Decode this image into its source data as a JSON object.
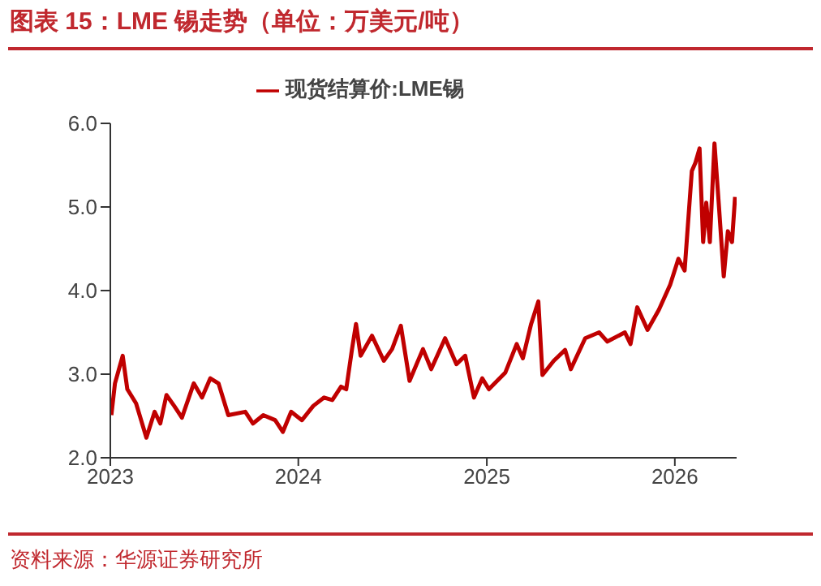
{
  "chart_data": {
    "type": "line",
    "title": "图表 15：LME 锡走势（单位：万美元/吨）",
    "annotations": [
      "资料来源：华源证券研究所"
    ],
    "x": [
      "2023-01-03",
      "2023-01-10",
      "2023-01-25",
      "2023-02-03",
      "2023-02-20",
      "2023-03-12",
      "2023-03-28",
      "2023-04-08",
      "2023-04-20",
      "2023-05-05",
      "2023-05-20",
      "2023-06-12",
      "2023-06-28",
      "2023-07-14",
      "2023-07-30",
      "2023-08-18",
      "2023-09-20",
      "2023-10-05",
      "2023-10-25",
      "2023-11-17",
      "2023-12-02",
      "2023-12-18",
      "2024-01-08",
      "2024-01-30",
      "2024-02-20",
      "2024-03-07",
      "2024-03-24",
      "2024-04-03",
      "2024-04-14",
      "2024-04-22",
      "2024-05-01",
      "2024-05-23",
      "2024-06-15",
      "2024-07-01",
      "2024-07-18",
      "2024-08-04",
      "2024-08-30",
      "2024-09-15",
      "2024-10-12",
      "2024-11-03",
      "2024-11-20",
      "2024-12-07",
      "2024-12-23",
      "2025-01-05",
      "2025-02-06",
      "2025-02-28",
      "2025-03-12",
      "2025-03-28",
      "2025-04-11",
      "2025-04-19",
      "2025-05-11",
      "2025-06-02",
      "2025-06-13",
      "2025-07-11",
      "2025-08-07",
      "2025-08-23",
      "2025-09-26",
      "2025-10-07",
      "2025-10-20",
      "2025-11-09",
      "2025-12-01",
      "2025-12-23",
      "2026-01-08",
      "2026-01-20",
      "2026-02-03",
      "2026-02-10",
      "2026-02-18",
      "2026-02-25",
      "2026-03-03",
      "2026-03-10",
      "2026-03-19",
      "2026-03-28",
      "2026-04-06",
      "2026-04-14",
      "2026-04-22",
      "2026-04-28"
    ],
    "series": [
      {
        "name": "现货结算价:LME锡",
        "color": "#c00000",
        "values": [
          2.51,
          2.89,
          3.22,
          2.82,
          2.65,
          2.24,
          2.55,
          2.41,
          2.75,
          2.62,
          2.48,
          2.89,
          2.72,
          2.95,
          2.89,
          2.51,
          2.55,
          2.41,
          2.51,
          2.45,
          2.31,
          2.55,
          2.45,
          2.62,
          2.72,
          2.69,
          2.85,
          2.82,
          3.29,
          3.6,
          3.22,
          3.46,
          3.16,
          3.3,
          3.58,
          2.92,
          3.3,
          3.06,
          3.43,
          3.12,
          3.22,
          2.72,
          2.95,
          2.82,
          3.02,
          3.36,
          3.19,
          3.6,
          3.87,
          2.99,
          3.16,
          3.29,
          3.06,
          3.43,
          3.5,
          3.39,
          3.5,
          3.36,
          3.8,
          3.53,
          3.77,
          4.07,
          4.38,
          4.24,
          5.43,
          5.53,
          5.7,
          4.58,
          5.05,
          4.58,
          5.76,
          4.98,
          4.17,
          4.71,
          4.58,
          5.12
        ]
      }
    ],
    "xlim": [
      "2023-01-01",
      "2026-05-01"
    ],
    "xticks": [
      "2023",
      "2024",
      "2025",
      "2026"
    ],
    "ylim": [
      2,
      6
    ],
    "yticks": [
      {
        "value": 2,
        "label": "2.0"
      },
      {
        "value": 3,
        "label": "3.0"
      },
      {
        "value": 4,
        "label": "4.0"
      },
      {
        "value": 5,
        "label": "5.0"
      },
      {
        "value": 6,
        "label": "6.0"
      }
    ],
    "grid": false,
    "legend": "top",
    "marker": "none",
    "line_style": "solid"
  }
}
